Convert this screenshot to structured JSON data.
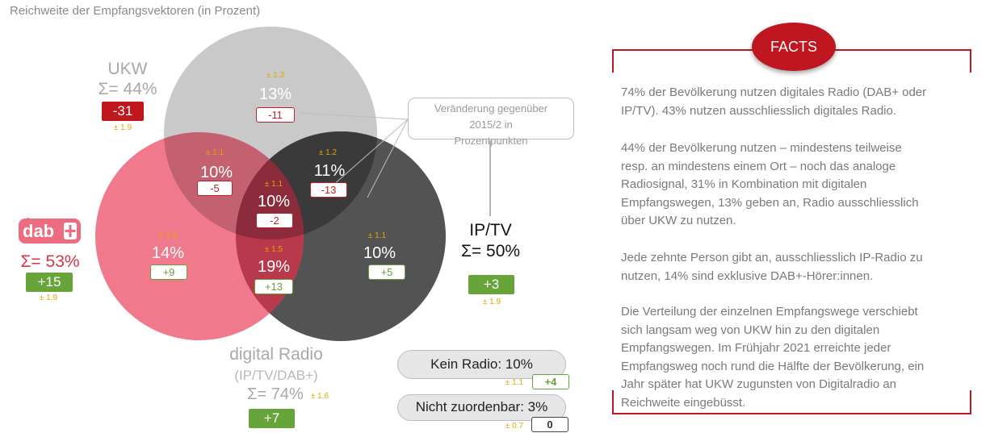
{
  "title": "Reichweite der Empfangsvektoren (in Prozent)",
  "colors": {
    "ukw": "#c7c7c7",
    "ipt": "#4d4d4d",
    "dab": "#ee6c80",
    "accent_red": "#c0161e",
    "accent_green": "#67a53a",
    "error": "#e3a500"
  },
  "chart_data": {
    "type": "venn",
    "sets": [
      {
        "name": "UKW",
        "total": "Σ= 44%",
        "change": "-31",
        "error": "± 1.9"
      },
      {
        "name": "IP/TV",
        "total": "Σ= 50%",
        "change": "+3",
        "error": "± 1.9"
      },
      {
        "name": "DAB+",
        "total": "Σ= 53%",
        "change": "+15",
        "error": "± 1.9"
      }
    ],
    "regions": [
      {
        "sets": [
          "UKW"
        ],
        "value": "13%",
        "change": "-11",
        "error": "± 1.3"
      },
      {
        "sets": [
          "UKW",
          "DAB+"
        ],
        "value": "10%",
        "change": "-5",
        "error": "± 1.1"
      },
      {
        "sets": [
          "UKW",
          "IP/TV"
        ],
        "value": "11%",
        "change": "-13",
        "error": "± 1.2"
      },
      {
        "sets": [
          "UKW",
          "DAB+",
          "IP/TV"
        ],
        "value": "10%",
        "change": "-2",
        "error": "± 1.1"
      },
      {
        "sets": [
          "DAB+"
        ],
        "value": "14%",
        "change": "+9",
        "error": "± 1.3"
      },
      {
        "sets": [
          "DAB+",
          "IP/TV"
        ],
        "value": "19%",
        "change": "+13",
        "error": "± 1.5"
      },
      {
        "sets": [
          "IP/TV"
        ],
        "value": "10%",
        "change": "+5",
        "error": "± 1.1"
      }
    ],
    "digital_radio": {
      "label": "digital Radio",
      "sublabel": "(IP/TV/DAB+)",
      "total": "Σ= 74%",
      "error": "± 1.6",
      "change": "+7"
    },
    "kein_radio": {
      "label": "Kein Radio: 10%",
      "error": "± 1.1",
      "change": "+4"
    },
    "nicht_zuordenbar": {
      "label": "Nicht zuordenbar: 3%",
      "error": "± 0.7",
      "change": "0"
    },
    "note": "Veränderung gegenüber 2015/2 in Prozentpunkten"
  },
  "logo": {
    "dab_text": "dab"
  },
  "facts": {
    "badge": "FACTS",
    "paragraphs": [
      [
        "74% der Bevölkerung nutzen digitales Radio (DAB+ oder",
        "IP/TV). 43% nutzen ausschliesslich digitales Radio."
      ],
      [
        "44% der Bevölkerung nutzen – mindestens teilweise",
        "resp. an mindestens einem Ort – noch das analoge",
        "Radiosignal, 31% in Kombination mit digitalen",
        "Empfangswegen, 13% geben an, Radio ausschliesslich",
        "über UKW zu nutzen."
      ],
      [
        "Jede zehnte Person gibt an, ausschliesslich IP-Radio zu",
        "nutzen, 14% sind exklusive DAB+-Hörer:innen."
      ],
      [
        "Die Verteilung der einzelnen Empfangswege verschiebt",
        "sich langsam weg von UKW hin zu den digitalen",
        "Empfangswegen. Im Frühjahr 2021 erreichte jeder",
        "Empfangsweg noch rund die Hälfte der Bevölkerung, ein",
        "Jahr später hat UKW zugunsten von Digitalradio an",
        "Reichweite eingebüsst."
      ]
    ]
  }
}
